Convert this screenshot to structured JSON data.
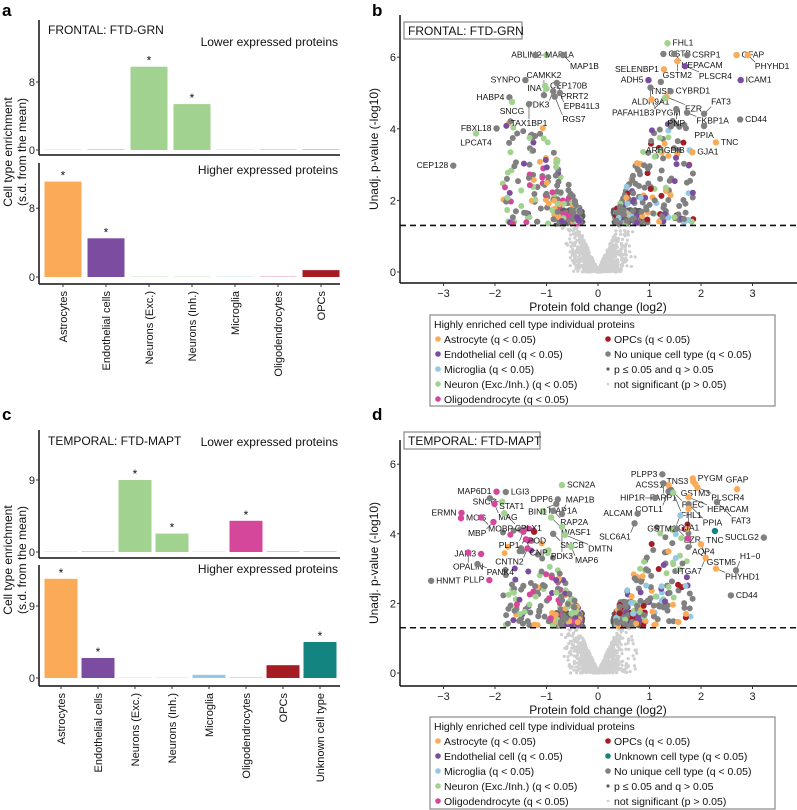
{
  "panels": {
    "a": "a",
    "b": "b",
    "c": "c",
    "d": "d"
  },
  "colors": {
    "Astrocyte": "#fbab57",
    "Endothelial": "#7b4c9f",
    "Microglia": "#95c9e1",
    "Neuron": "#a1d28f",
    "Oligodendrocyte": "#d5479a",
    "OPCs": "#a61c24",
    "Unknown": "#13847f",
    "NoUnique": "#808080",
    "PQ": "#5e5e5e",
    "NS": "#cfcfcf"
  },
  "chart_data": [
    {
      "type": "bar",
      "title": "FRONTAL: FTD-GRN",
      "ylabel": [
        "Cell type enrichment",
        "(s.d. from the mean)"
      ],
      "categories": [
        "Astrocytes",
        "Endothelial cells",
        "Neurons (Exc.)",
        "Neurons (Inh.)",
        "Microglia",
        "Oligodendrocytes",
        "OPCs"
      ],
      "category_colors": [
        "Astrocyte",
        "Endothelial",
        "Neuron",
        "Neuron",
        "Microglia",
        "Oligodendrocyte",
        "OPCs"
      ],
      "subplots": [
        {
          "label": "Lower expressed proteins",
          "yticks": [
            "0",
            "8"
          ],
          "ytick_values": [
            0,
            8
          ],
          "values": [
            0.05,
            0.05,
            9.8,
            5.4,
            0.05,
            0.05,
            0.05
          ],
          "significant": [
            false,
            false,
            true,
            true,
            false,
            false,
            false
          ],
          "star": "*"
        },
        {
          "label": "Higher expressed proteins",
          "yticks": [
            "0",
            "8"
          ],
          "ytick_values": [
            0,
            8
          ],
          "values": [
            11.1,
            4.5,
            0.05,
            0.05,
            0.05,
            0.05,
            0.8
          ],
          "significant": [
            true,
            true,
            false,
            false,
            false,
            false,
            false
          ],
          "star": "*"
        }
      ]
    },
    {
      "type": "scatter",
      "title": "FRONTAL: FTD-GRN",
      "xlabel": "Protein fold change (log2)",
      "ylabel": "Unadj. p-value (-log10)",
      "xticks": [
        "−3",
        "−2",
        "−1",
        "0",
        "1",
        "2",
        "3"
      ],
      "xtick_values": [
        -3,
        -2,
        -1,
        0,
        1,
        2,
        3
      ],
      "yticks": [
        "0",
        "2",
        "4",
        "6"
      ],
      "ytick_values": [
        0,
        2,
        4,
        6
      ],
      "significance_line": 1.3,
      "labeled_points": [
        {
          "name": "ABLIM2",
          "x": -1.0,
          "y": 6.06,
          "type": "Neuron"
        },
        {
          "name": "MAP1A",
          "x": -1.22,
          "y": 6.06,
          "type": "NoUnique"
        },
        {
          "name": "MAP1B",
          "x": -0.68,
          "y": 6.06,
          "type": "NoUnique"
        },
        {
          "name": "SYNPO",
          "x": -1.41,
          "y": 5.36,
          "type": "NoUnique"
        },
        {
          "name": "CEP170B",
          "x": -1.03,
          "y": 5.2,
          "type": "Neuron"
        },
        {
          "name": "INA",
          "x": -1.0,
          "y": 5.12,
          "type": "Neuron"
        },
        {
          "name": "PRRT2",
          "x": -0.8,
          "y": 5.28,
          "type": "NoUnique"
        },
        {
          "name": "PDK3",
          "x": -0.87,
          "y": 5.05,
          "type": "NoUnique"
        },
        {
          "name": "EPB41L3",
          "x": -0.74,
          "y": 5.0,
          "type": "NoUnique"
        },
        {
          "name": "RGS7",
          "x": -0.84,
          "y": 4.9,
          "type": "NoUnique"
        },
        {
          "name": "CAMKK2",
          "x": -1.05,
          "y": 4.94,
          "type": "NoUnique"
        },
        {
          "name": "HABP4",
          "x": -1.72,
          "y": 4.88,
          "type": "NoUnique"
        },
        {
          "name": "SNCG",
          "x": -1.67,
          "y": 4.75,
          "type": "Neuron"
        },
        {
          "name": "TAX1BP1",
          "x": -1.34,
          "y": 4.69,
          "type": "NoUnique"
        },
        {
          "name": "FBXL18",
          "x": -1.97,
          "y": 4.01,
          "type": "NoUnique"
        },
        {
          "name": "LPCAT4",
          "x": -2.37,
          "y": 3.87,
          "type": "Neuron"
        },
        {
          "name": "CEP128",
          "x": -2.81,
          "y": 2.97,
          "type": "NoUnique"
        },
        {
          "name": "FHL1",
          "x": 1.35,
          "y": 6.39,
          "type": "Neuron"
        },
        {
          "name": "CSTB",
          "x": 1.27,
          "y": 6.09,
          "type": "NoUnique"
        },
        {
          "name": "HEPACAM",
          "x": 1.48,
          "y": 6.09,
          "type": "NoUnique"
        },
        {
          "name": "CSRP1",
          "x": 1.73,
          "y": 6.06,
          "type": "NoUnique"
        },
        {
          "name": "GSTM2",
          "x": 1.54,
          "y": 5.89,
          "type": "Astrocyte"
        },
        {
          "name": "SELENBP1",
          "x": 1.28,
          "y": 5.66,
          "type": "Astrocyte"
        },
        {
          "name": "PLSCR4",
          "x": 1.69,
          "y": 5.75,
          "type": "Endothelial"
        },
        {
          "name": "GFAP",
          "x": 2.69,
          "y": 6.06,
          "type": "Astrocyte"
        },
        {
          "name": "PHYHD1",
          "x": 2.91,
          "y": 6.06,
          "type": "Astrocyte"
        },
        {
          "name": "ICAM1",
          "x": 2.77,
          "y": 5.36,
          "type": "Endothelial"
        },
        {
          "name": "ADH5",
          "x": 0.98,
          "y": 5.36,
          "type": "Endothelial"
        },
        {
          "name": "TNS3",
          "x": 1.22,
          "y": 5.31,
          "type": "NoUnique"
        },
        {
          "name": "ALDH9A1",
          "x": 1.02,
          "y": 5.15,
          "type": "NoUnique"
        },
        {
          "name": "CYBRD1",
          "x": 1.41,
          "y": 5.05,
          "type": "NoUnique"
        },
        {
          "name": "PYGM",
          "x": 1.04,
          "y": 4.82,
          "type": "Astrocyte"
        },
        {
          "name": "EZR",
          "x": 1.33,
          "y": 4.89,
          "type": "Astrocyte"
        },
        {
          "name": "PAFAH1B3",
          "x": 1.3,
          "y": 4.86,
          "type": "Neuron"
        },
        {
          "name": "FKBP1A",
          "x": 1.73,
          "y": 4.45,
          "type": "NoUnique"
        },
        {
          "name": "PNP",
          "x": 1.52,
          "y": 4.55,
          "type": "NoUnique"
        },
        {
          "name": "FAT3",
          "x": 2.06,
          "y": 4.42,
          "type": "NoUnique"
        },
        {
          "name": "CD44",
          "x": 2.76,
          "y": 4.26,
          "type": "NoUnique"
        },
        {
          "name": "PPIA",
          "x": 2.06,
          "y": 4.08,
          "type": "NoUnique"
        },
        {
          "name": "TNC",
          "x": 2.29,
          "y": 3.62,
          "type": "Astrocyte"
        },
        {
          "name": "ARHGDIB",
          "x": 1.78,
          "y": 3.4,
          "type": "Microglia"
        },
        {
          "name": "GJA1",
          "x": 1.83,
          "y": 3.35,
          "type": "Astrocyte"
        }
      ],
      "legend": {
        "title": "Highly enriched cell type individual proteins",
        "items": [
          {
            "label": "Astrocyte (q < 0.05)",
            "type": "Astrocyte"
          },
          {
            "label": "Endothelial cell (q < 0.05)",
            "type": "Endothelial"
          },
          {
            "label": "Microglia (q < 0.05)",
            "type": "Microglia"
          },
          {
            "label": "Neuron (Exc./Inh.) (q < 0.05)",
            "type": "Neuron"
          },
          {
            "label": "Oligodendrocyte (q < 0.05)",
            "type": "Oligodendrocyte"
          },
          {
            "label": "OPCs (q < 0.05)",
            "type": "OPCs"
          },
          {
            "label": "No unique cell type (q < 0.05)",
            "type": "NoUnique"
          },
          {
            "label": "p ≤ 0.05 and q > 0.05",
            "type": "PQ"
          },
          {
            "label": "not significant (p > 0.05)",
            "type": "NS"
          }
        ]
      }
    },
    {
      "type": "bar",
      "title": "TEMPORAL: FTD-MAPT",
      "ylabel": [
        "Cell type enrichment",
        "(s.d. from the mean)"
      ],
      "categories": [
        "Astrocytes",
        "Endothelial cells",
        "Neurons (Exc.)",
        "Neurons (Inh.)",
        "Microglia",
        "Oligodendrocytes",
        "OPCs",
        "Unknown cell type"
      ],
      "category_colors": [
        "Astrocyte",
        "Endothelial",
        "Neuron",
        "Neuron",
        "Microglia",
        "Oligodendrocyte",
        "OPCs",
        "Unknown"
      ],
      "subplots": [
        {
          "label": "Lower expressed proteins",
          "yticks": [
            "0",
            "9"
          ],
          "ytick_values": [
            0,
            9
          ],
          "values": [
            0.05,
            0.05,
            9.0,
            2.3,
            0.05,
            3.9,
            0.05,
            0.05
          ],
          "significant": [
            false,
            false,
            true,
            true,
            false,
            true,
            false,
            false
          ],
          "star": "*"
        },
        {
          "label": "Higher expressed proteins",
          "yticks": [
            "0",
            "9"
          ],
          "ytick_values": [
            0,
            9
          ],
          "values": [
            12.4,
            2.5,
            0.05,
            0.05,
            0.4,
            0.05,
            1.6,
            4.5
          ],
          "significant": [
            true,
            true,
            false,
            false,
            false,
            false,
            false,
            true
          ],
          "star": "*"
        }
      ]
    },
    {
      "type": "scatter",
      "title": "TEMPORAL: FTD-MAPT",
      "xlabel": "Protein fold change (log2)",
      "ylabel": "Unadj. p-value (-log10)",
      "xticks": [
        "−3",
        "−2",
        "−1",
        "0",
        "1",
        "2",
        "3"
      ],
      "xtick_values": [
        -3,
        -2,
        -1,
        0,
        1,
        2,
        3
      ],
      "yticks": [
        "0",
        "2",
        "4",
        "6"
      ],
      "ytick_values": [
        0,
        2,
        4,
        6
      ],
      "significance_line": 1.3,
      "labeled_points": [
        {
          "name": "MAP6D1",
          "x": -1.97,
          "y": 5.21,
          "type": "Oligodendrocyte"
        },
        {
          "name": "LGI3",
          "x": -1.79,
          "y": 5.2,
          "type": "NoUnique"
        },
        {
          "name": "SNCG",
          "x": -1.86,
          "y": 4.92,
          "type": "Neuron"
        },
        {
          "name": "STAT1",
          "x": -2.1,
          "y": 5.02,
          "type": "NoUnique"
        },
        {
          "name": "ERMN",
          "x": -2.65,
          "y": 4.6,
          "type": "Oligodendrocyte"
        },
        {
          "name": "MAG",
          "x": -2.01,
          "y": 4.86,
          "type": "Oligodendrocyte"
        },
        {
          "name": "MOG",
          "x": -2.66,
          "y": 4.45,
          "type": "Oligodendrocyte"
        },
        {
          "name": "MOBP",
          "x": -2.27,
          "y": 4.47,
          "type": "Oligodendrocyte"
        },
        {
          "name": "MBP",
          "x": -2.03,
          "y": 4.34,
          "type": "Oligodendrocyte"
        },
        {
          "name": "CPLX1",
          "x": -1.82,
          "y": 4.59,
          "type": "Neuron"
        },
        {
          "name": "MAP1A",
          "x": -1.06,
          "y": 4.65,
          "type": "Neuron"
        },
        {
          "name": "SCN2A",
          "x": -0.7,
          "y": 5.4,
          "type": "Neuron"
        },
        {
          "name": "DPP6",
          "x": -0.78,
          "y": 4.99,
          "type": "NoUnique"
        },
        {
          "name": "BIN1",
          "x": -0.81,
          "y": 4.86,
          "type": "NoUnique"
        },
        {
          "name": "RAP2A",
          "x": -0.87,
          "y": 4.66,
          "type": "NoUnique"
        },
        {
          "name": "MAP1B",
          "x": -0.7,
          "y": 4.57,
          "type": "NoUnique"
        },
        {
          "name": "WASF1",
          "x": -0.91,
          "y": 4.47,
          "type": "Neuron"
        },
        {
          "name": "APOD",
          "x": -1.24,
          "y": 4.06,
          "type": "OPCs"
        },
        {
          "name": "SNCB",
          "x": -0.87,
          "y": 4.0,
          "type": "NoUnique"
        },
        {
          "name": "PDK3",
          "x": -0.7,
          "y": 4.2,
          "type": "Neuron"
        },
        {
          "name": "DMTN",
          "x": -0.64,
          "y": 3.97,
          "type": "Neuron"
        },
        {
          "name": "MAP6",
          "x": -0.52,
          "y": 3.63,
          "type": "Neuron"
        },
        {
          "name": "PLP1",
          "x": -1.45,
          "y": 4.06,
          "type": "Oligodendrocyte"
        },
        {
          "name": "CNP",
          "x": -1.4,
          "y": 3.84,
          "type": "Oligodendrocyte"
        },
        {
          "name": "CNTN2",
          "x": -1.37,
          "y": 3.58,
          "type": "Oligodendrocyte"
        },
        {
          "name": "JAM3",
          "x": -2.27,
          "y": 3.42,
          "type": "Oligodendrocyte"
        },
        {
          "name": "OPALIN",
          "x": -2.52,
          "y": 3.46,
          "type": "Oligodendrocyte"
        },
        {
          "name": "PANK4",
          "x": -2.34,
          "y": 3.13,
          "type": "NoUnique"
        },
        {
          "name": "HNMT",
          "x": -3.24,
          "y": 2.65,
          "type": "NoUnique"
        },
        {
          "name": "PLLP",
          "x": -2.11,
          "y": 2.67,
          "type": "Oligodendrocyte"
        },
        {
          "name": "PYGM",
          "x": 1.84,
          "y": 5.59,
          "type": "Astrocyte"
        },
        {
          "name": "TNS3",
          "x": 1.85,
          "y": 5.5,
          "type": "Astrocyte"
        },
        {
          "name": "GSTM3",
          "x": 1.89,
          "y": 5.43,
          "type": "Astrocyte"
        },
        {
          "name": "PLSCR4",
          "x": 1.93,
          "y": 5.33,
          "type": "Astrocyte"
        },
        {
          "name": "GFAP",
          "x": 2.7,
          "y": 5.28,
          "type": "Astrocyte"
        },
        {
          "name": "PLPP3",
          "x": 1.25,
          "y": 5.71,
          "type": "NoUnique"
        },
        {
          "name": "ACSS1",
          "x": 1.37,
          "y": 5.4,
          "type": "Astrocyte"
        },
        {
          "name": "FARP1",
          "x": 1.27,
          "y": 5.45,
          "type": "NoUnique"
        },
        {
          "name": "PLEC",
          "x": 1.42,
          "y": 5.26,
          "type": "NoUnique"
        },
        {
          "name": "COTL1",
          "x": 1.37,
          "y": 5.22,
          "type": "NoUnique"
        },
        {
          "name": "FHL1",
          "x": 1.46,
          "y": 5.18,
          "type": "Neuron"
        },
        {
          "name": "HIP1R",
          "x": 1.11,
          "y": 5.03,
          "type": "NoUnique"
        },
        {
          "name": "HEPACAM",
          "x": 1.76,
          "y": 5.05,
          "type": "Astrocyte"
        },
        {
          "name": "PPIA",
          "x": 1.76,
          "y": 4.85,
          "type": "NoUnique"
        },
        {
          "name": "FAT3",
          "x": 2.31,
          "y": 4.91,
          "type": "NoUnique"
        },
        {
          "name": "GJA1",
          "x": 1.76,
          "y": 4.72,
          "type": "Astrocyte"
        },
        {
          "name": "GSTM2",
          "x": 1.6,
          "y": 4.53,
          "type": "Microglia"
        },
        {
          "name": "ALCAM",
          "x": 0.77,
          "y": 4.58,
          "type": "NoUnique"
        },
        {
          "name": "SLC6A1",
          "x": 0.71,
          "y": 4.3,
          "type": "NoUnique"
        },
        {
          "name": "EZR",
          "x": 1.53,
          "y": 4.15,
          "type": "NoUnique"
        },
        {
          "name": "AQP4",
          "x": 1.75,
          "y": 3.87,
          "type": "Oligodendrocyte"
        },
        {
          "name": "TNC",
          "x": 2.27,
          "y": 4.08,
          "type": "Unknown"
        },
        {
          "name": "SUCLG2",
          "x": 3.22,
          "y": 3.89,
          "type": "NoUnique"
        },
        {
          "name": "GSTM5",
          "x": 2.0,
          "y": 3.7,
          "type": "Astrocyte"
        },
        {
          "name": "ITGA7",
          "x": 2.09,
          "y": 3.31,
          "type": "Astrocyte"
        },
        {
          "name": "PHYHD1",
          "x": 2.29,
          "y": 3.0,
          "type": "Astrocyte"
        },
        {
          "name": "H1−0",
          "x": 2.68,
          "y": 2.95,
          "type": "NoUnique"
        },
        {
          "name": "CD44",
          "x": 2.58,
          "y": 2.23,
          "type": "NoUnique"
        }
      ],
      "legend": {
        "title": "Highly enriched cell type individual proteins",
        "items": [
          {
            "label": "Astrocyte (q < 0.05)",
            "type": "Astrocyte"
          },
          {
            "label": "Endothelial cell (q < 0.05)",
            "type": "Endothelial"
          },
          {
            "label": "Microglia (q < 0.05)",
            "type": "Microglia"
          },
          {
            "label": "Neuron (Exc./Inh.) (q < 0.05)",
            "type": "Neuron"
          },
          {
            "label": "Oligodendrocyte (q < 0.05)",
            "type": "Oligodendrocyte"
          },
          {
            "label": "OPCs (q < 0.05)",
            "type": "OPCs"
          },
          {
            "label": "Unknown cell type (q < 0.05)",
            "type": "Unknown"
          },
          {
            "label": "No unique cell type (q < 0.05)",
            "type": "NoUnique"
          },
          {
            "label": "p ≤ 0.05 and q > 0.05",
            "type": "PQ"
          },
          {
            "label": "not significant (p > 0.05)",
            "type": "NS"
          }
        ]
      }
    }
  ]
}
